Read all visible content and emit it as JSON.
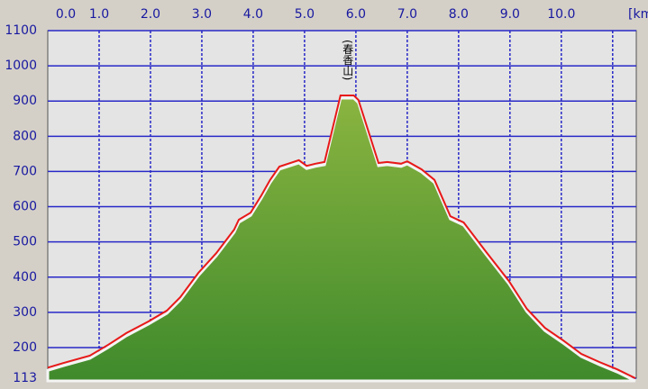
{
  "chart_data": {
    "type": "line",
    "x_unit_label": "[km",
    "annotation": {
      "text": "(春香山)",
      "x": 5.83
    },
    "x": [
      0,
      0.3,
      0.82,
      1.18,
      1.53,
      1.96,
      2.32,
      2.58,
      2.93,
      3.28,
      3.63,
      3.72,
      3.95,
      4.16,
      4.33,
      4.51,
      4.68,
      4.89,
      5.04,
      5.21,
      5.39,
      5.7,
      5.96,
      6.05,
      6.44,
      6.61,
      6.88,
      7.0,
      7.28,
      7.53,
      7.84,
      8.1,
      8.54,
      8.98,
      9.33,
      9.68,
      10.04,
      10.39,
      10.74,
      11.09,
      11.44
    ],
    "series": [
      {
        "color": "#e81818",
        "fill": "#6a9c38",
        "values": [
          143,
          156,
          177,
          208,
          241,
          274,
          305,
          343,
          412,
          468,
          535,
          563,
          583,
          632,
          676,
          714,
          722,
          732,
          716,
          722,
          727,
          916,
          916,
          903,
          724,
          727,
          722,
          729,
          706,
          676,
          573,
          555,
          471,
          389,
          310,
          256,
          220,
          182,
          159,
          138,
          113
        ]
      }
    ],
    "xlim": [
      0,
      11.46
    ],
    "xticks": [
      {
        "value": 0,
        "label": "0.0"
      },
      {
        "value": 1,
        "label": "1.0"
      },
      {
        "value": 2,
        "label": "2.0"
      },
      {
        "value": 3,
        "label": "3.0"
      },
      {
        "value": 4,
        "label": "4.0"
      },
      {
        "value": 5,
        "label": "5.0"
      },
      {
        "value": 6,
        "label": "6.0"
      },
      {
        "value": 7,
        "label": "7.0"
      },
      {
        "value": 8,
        "label": "8.0"
      },
      {
        "value": 9,
        "label": "9.0"
      },
      {
        "value": 10,
        "label": "10.0"
      },
      {
        "value": 11,
        "label": null
      }
    ],
    "ylim": [
      113,
      1100
    ],
    "yticks": [
      113,
      200,
      300,
      400,
      500,
      600,
      700,
      800,
      900,
      1000,
      1100
    ],
    "grid": true,
    "grid_color": "#2828c8"
  }
}
